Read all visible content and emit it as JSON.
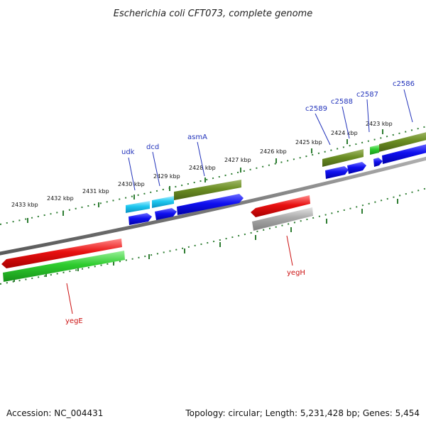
{
  "header": {
    "title": "Escherichia coli CFT073, complete genome"
  },
  "footer": {
    "accession": "Accession: NC_004431",
    "topology": "Topology: circular; Length: 5,231,428 bp; Genes: 5,454"
  },
  "ticks": [
    "2423 kbp",
    "2424 kbp",
    "2425 kbp",
    "2426 kbp",
    "2427 kbp",
    "2428 kbp",
    "2429 kbp",
    "2430 kbp",
    "2431 kbp",
    "2432 kbp",
    "2433 kbp"
  ],
  "genes": {
    "c2586": "c2586",
    "c2587": "c2587",
    "c2588": "c2588",
    "c2589": "c2589",
    "asmA": "asmA",
    "dcd": "dcd",
    "udk": "udk",
    "yegH": "yegH",
    "yegE": "yegE"
  },
  "colors": {
    "forward_cds": "#0a0ae6",
    "forward_gene": "#6b8e23",
    "forward_gene_light": "#1ec8f0",
    "reverse_gene": "#e81010",
    "reverse_cds": "#2ecc2e",
    "pseudo": "#a9a9a9",
    "backbone": "#808080",
    "tick_dots": "#2e7d32"
  }
}
